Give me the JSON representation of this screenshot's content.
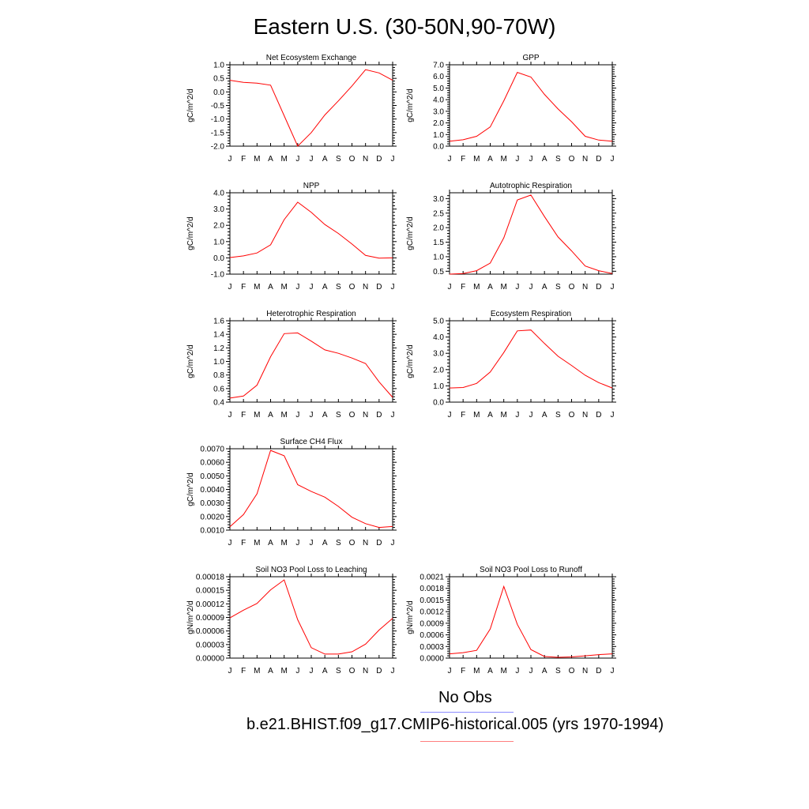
{
  "figure": {
    "title": "Eastern U.S. (30-50N,90-70W)",
    "legend": {
      "obs_label": "No Obs",
      "obs_color": "#8c8cff",
      "model_label": "b.e21.BHIST.f09_g17.CMIP6-historical.005 (yrs 1970-1994)",
      "model_color": "#ff0000"
    }
  },
  "chart_data": [
    {
      "type": "line",
      "title": "Net Ecosystem Exchange",
      "ylabel": "gC/m^2/d",
      "categories": [
        "J",
        "F",
        "M",
        "A",
        "M",
        "J",
        "J",
        "A",
        "S",
        "O",
        "N",
        "D",
        "J"
      ],
      "ylim": [
        -2.0,
        1.0
      ],
      "yticks": [
        "1.0",
        "0.5",
        "0.0",
        "-0.5",
        "-1.0",
        "-1.5",
        "-2.0"
      ],
      "ytick_values": [
        1.0,
        0.5,
        0.0,
        -0.5,
        -1.0,
        -1.5,
        -2.0
      ],
      "series": [
        {
          "values": [
            0.43,
            0.35,
            0.32,
            0.25,
            -0.88,
            -2.0,
            -1.5,
            -0.85,
            -0.33,
            0.22,
            0.82,
            0.7,
            0.43
          ]
        }
      ]
    },
    {
      "type": "line",
      "title": "GPP",
      "ylabel": "gC/m^2/d",
      "categories": [
        "J",
        "F",
        "M",
        "A",
        "M",
        "J",
        "J",
        "A",
        "S",
        "O",
        "N",
        "D",
        "J"
      ],
      "ylim": [
        0.0,
        7.0
      ],
      "yticks": [
        "7.0",
        "6.0",
        "5.0",
        "4.0",
        "3.0",
        "2.0",
        "1.0",
        "0.0"
      ],
      "ytick_values": [
        7.0,
        6.0,
        5.0,
        4.0,
        3.0,
        2.0,
        1.0,
        0.0
      ],
      "series": [
        {
          "values": [
            0.42,
            0.55,
            0.85,
            1.65,
            3.9,
            6.35,
            5.95,
            4.45,
            3.2,
            2.1,
            0.85,
            0.52,
            0.42
          ]
        }
      ]
    },
    {
      "type": "line",
      "title": "NPP",
      "ylabel": "gC/m^2/d",
      "categories": [
        "J",
        "F",
        "M",
        "A",
        "M",
        "J",
        "J",
        "A",
        "S",
        "O",
        "N",
        "D",
        "J"
      ],
      "ylim": [
        -1.0,
        4.0
      ],
      "yticks": [
        "4.0",
        "3.0",
        "2.0",
        "1.0",
        "0.0",
        "-1.0"
      ],
      "ytick_values": [
        4.0,
        3.0,
        2.0,
        1.0,
        0.0,
        -1.0
      ],
      "series": [
        {
          "values": [
            0.02,
            0.12,
            0.3,
            0.8,
            2.35,
            3.42,
            2.8,
            2.05,
            1.5,
            0.85,
            0.15,
            -0.02,
            0.0
          ]
        }
      ]
    },
    {
      "type": "line",
      "title": "Autotrophic Respiration",
      "ylabel": "gC/m^2/d",
      "categories": [
        "J",
        "F",
        "M",
        "A",
        "M",
        "J",
        "J",
        "A",
        "S",
        "O",
        "N",
        "D",
        "J"
      ],
      "ylim": [
        0.4,
        3.2
      ],
      "yticks": [
        "3.0",
        "2.5",
        "2.0",
        "1.5",
        "1.0",
        "0.5"
      ],
      "ytick_values": [
        3.0,
        2.5,
        2.0,
        1.5,
        1.0,
        0.5
      ],
      "series": [
        {
          "values": [
            0.4,
            0.42,
            0.52,
            0.78,
            1.65,
            2.95,
            3.12,
            2.38,
            1.68,
            1.2,
            0.68,
            0.52,
            0.42
          ]
        }
      ]
    },
    {
      "type": "line",
      "title": "Heterotrophic Respiration",
      "ylabel": "gC/m^2/d",
      "categories": [
        "J",
        "F",
        "M",
        "A",
        "M",
        "J",
        "J",
        "A",
        "S",
        "O",
        "N",
        "D",
        "J"
      ],
      "ylim": [
        0.4,
        1.6
      ],
      "yticks": [
        "1.6",
        "1.4",
        "1.2",
        "1.0",
        "0.8",
        "0.6",
        "0.4"
      ],
      "ytick_values": [
        1.6,
        1.4,
        1.2,
        1.0,
        0.8,
        0.6,
        0.4
      ],
      "series": [
        {
          "values": [
            0.46,
            0.49,
            0.65,
            1.07,
            1.41,
            1.42,
            1.3,
            1.17,
            1.12,
            1.05,
            0.97,
            0.7,
            0.47
          ]
        }
      ]
    },
    {
      "type": "line",
      "title": "Ecosystem Respiration",
      "ylabel": "gC/m^2/d",
      "categories": [
        "J",
        "F",
        "M",
        "A",
        "M",
        "J",
        "J",
        "A",
        "S",
        "O",
        "N",
        "D",
        "J"
      ],
      "ylim": [
        0.0,
        5.0
      ],
      "yticks": [
        "5.0",
        "4.0",
        "3.0",
        "2.0",
        "1.0",
        "0.0"
      ],
      "ytick_values": [
        5.0,
        4.0,
        3.0,
        2.0,
        1.0,
        0.0
      ],
      "series": [
        {
          "values": [
            0.87,
            0.9,
            1.15,
            1.85,
            3.05,
            4.38,
            4.43,
            3.6,
            2.82,
            2.25,
            1.65,
            1.2,
            0.87
          ]
        }
      ]
    },
    {
      "type": "line",
      "title": "Surface CH4 Flux",
      "ylabel": "gC/m^2/d",
      "categories": [
        "J",
        "F",
        "M",
        "A",
        "M",
        "J",
        "J",
        "A",
        "S",
        "O",
        "N",
        "D",
        "J"
      ],
      "ylim": [
        0.001,
        0.007
      ],
      "yticks": [
        "0.0070",
        "0.0060",
        "0.0050",
        "0.0040",
        "0.0030",
        "0.0020",
        "0.0010"
      ],
      "ytick_values": [
        0.007,
        0.006,
        0.005,
        0.004,
        0.003,
        0.002,
        0.001
      ],
      "series": [
        {
          "values": [
            0.00125,
            0.00215,
            0.00368,
            0.00688,
            0.00648,
            0.00435,
            0.00385,
            0.00343,
            0.00275,
            0.00195,
            0.00148,
            0.0012,
            0.00127
          ]
        }
      ]
    },
    {
      "type": "line",
      "title": "Soil NO3 Pool Loss to Leaching",
      "ylabel": "gN/m^2/d",
      "categories": [
        "J",
        "F",
        "M",
        "A",
        "M",
        "J",
        "J",
        "A",
        "S",
        "O",
        "N",
        "D",
        "J"
      ],
      "ylim": [
        0.0,
        0.00018
      ],
      "yticks": [
        "0.00018",
        "0.00015",
        "0.00012",
        "0.00009",
        "0.00006",
        "0.00003",
        "0.00000"
      ],
      "ytick_values": [
        0.00018,
        0.00015,
        0.00012,
        9e-05,
        6e-05,
        3e-05,
        0.0
      ],
      "series": [
        {
          "values": [
            8.9e-05,
            0.000106,
            0.000121,
            0.000151,
            0.000173,
            8.5e-05,
            2.3e-05,
            9e-06,
            9e-06,
            1.4e-05,
            3.1e-05,
            6.2e-05,
            8.8e-05
          ]
        }
      ]
    },
    {
      "type": "line",
      "title": "Soil NO3 Pool Loss to Runoff",
      "ylabel": "gN/m^2/d",
      "categories": [
        "J",
        "F",
        "M",
        "A",
        "M",
        "J",
        "J",
        "A",
        "S",
        "O",
        "N",
        "D",
        "J"
      ],
      "ylim": [
        0.0,
        0.0021
      ],
      "yticks": [
        "0.0021",
        "0.0018",
        "0.0015",
        "0.0012",
        "0.0009",
        "0.0006",
        "0.0003",
        "0.0000"
      ],
      "ytick_values": [
        0.0021,
        0.0018,
        0.0015,
        0.0012,
        0.0009,
        0.0006,
        0.0003,
        0.0
      ],
      "series": [
        {
          "values": [
            0.00011,
            0.00014,
            0.0002,
            0.00075,
            0.00185,
            0.00087,
            0.00022,
            4e-05,
            2e-05,
            3e-05,
            6e-05,
            9e-05,
            0.00011
          ]
        }
      ]
    }
  ]
}
